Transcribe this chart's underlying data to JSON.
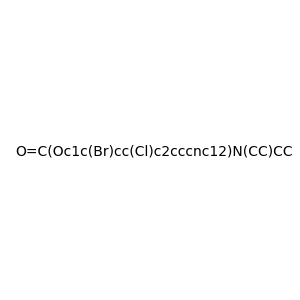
{
  "smiles": "O=C(Oc1c(Br)cc(Cl)c2cccnc12)N(CC)CC",
  "title": "",
  "background_color": "#e8e8e8",
  "atom_colors": {
    "Cl": "#00cc00",
    "Br": "#cc8800",
    "N": "#0000ff",
    "O": "#ff0000"
  },
  "figsize": [
    3.0,
    3.0
  ],
  "dpi": 100
}
